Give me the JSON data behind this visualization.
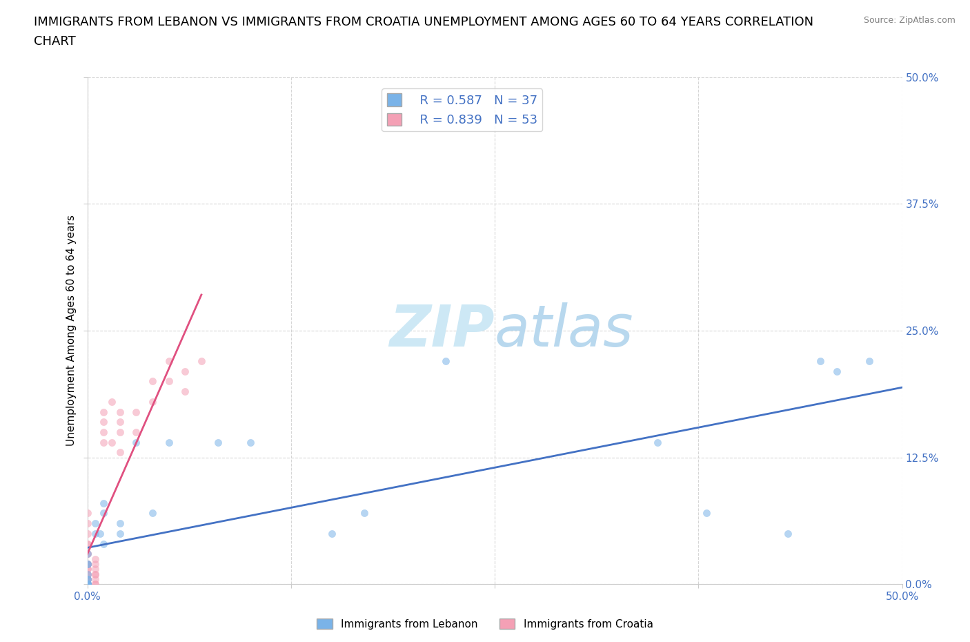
{
  "title_line1": "IMMIGRANTS FROM LEBANON VS IMMIGRANTS FROM CROATIA UNEMPLOYMENT AMONG AGES 60 TO 64 YEARS CORRELATION",
  "title_line2": "CHART",
  "source": "Source: ZipAtlas.com",
  "ylabel": "Unemployment Among Ages 60 to 64 years",
  "legend_R1": "R = 0.587",
  "legend_N1": "N = 37",
  "legend_R2": "R = 0.839",
  "legend_N2": "N = 53",
  "color_lebanon": "#7ab3e8",
  "color_croatia": "#f4a0b5",
  "line_color_lebanon": "#4472c4",
  "line_color_croatia": "#e05080",
  "watermark_zip": "ZIP",
  "watermark_atlas": "atlas",
  "xlim": [
    0.0,
    0.5
  ],
  "ylim": [
    0.0,
    0.5
  ],
  "xticks": [
    0.0,
    0.125,
    0.25,
    0.375,
    0.5
  ],
  "yticks": [
    0.0,
    0.125,
    0.25,
    0.375,
    0.5
  ],
  "xtick_labels": [
    "0.0%",
    "",
    "",
    "",
    "50.0%"
  ],
  "ytick_labels": [
    "0.0%",
    "12.5%",
    "25.0%",
    "37.5%",
    "50.0%"
  ],
  "lebanon_x": [
    0.0,
    0.0,
    0.0,
    0.0,
    0.0,
    0.0,
    0.0,
    0.0,
    0.0,
    0.0,
    0.0,
    0.0,
    0.0,
    0.0,
    0.0,
    0.005,
    0.005,
    0.008,
    0.01,
    0.01,
    0.01,
    0.02,
    0.02,
    0.03,
    0.04,
    0.05,
    0.08,
    0.1,
    0.15,
    0.17,
    0.22,
    0.35,
    0.38,
    0.43,
    0.45,
    0.46,
    0.48
  ],
  "lebanon_y": [
    0.0,
    0.0,
    0.0,
    0.0,
    0.0,
    0.0,
    0.0,
    0.0,
    0.0,
    0.005,
    0.005,
    0.01,
    0.02,
    0.02,
    0.03,
    0.05,
    0.06,
    0.05,
    0.04,
    0.07,
    0.08,
    0.05,
    0.06,
    0.14,
    0.07,
    0.14,
    0.14,
    0.14,
    0.05,
    0.07,
    0.22,
    0.14,
    0.07,
    0.05,
    0.22,
    0.21,
    0.22
  ],
  "croatia_x": [
    0.0,
    0.0,
    0.0,
    0.0,
    0.0,
    0.0,
    0.0,
    0.0,
    0.0,
    0.0,
    0.0,
    0.0,
    0.0,
    0.0,
    0.0,
    0.0,
    0.0,
    0.0,
    0.0,
    0.0,
    0.0,
    0.0,
    0.0,
    0.0,
    0.0,
    0.0,
    0.005,
    0.005,
    0.005,
    0.005,
    0.005,
    0.005,
    0.005,
    0.005,
    0.01,
    0.01,
    0.01,
    0.01,
    0.015,
    0.015,
    0.02,
    0.02,
    0.02,
    0.02,
    0.03,
    0.03,
    0.04,
    0.04,
    0.05,
    0.05,
    0.06,
    0.06,
    0.07
  ],
  "croatia_y": [
    0.0,
    0.0,
    0.0,
    0.0,
    0.0,
    0.0,
    0.0,
    0.0,
    0.005,
    0.005,
    0.005,
    0.01,
    0.01,
    0.015,
    0.015,
    0.02,
    0.02,
    0.02,
    0.02,
    0.03,
    0.03,
    0.04,
    0.04,
    0.05,
    0.06,
    0.07,
    0.0,
    0.0,
    0.005,
    0.01,
    0.01,
    0.015,
    0.02,
    0.025,
    0.14,
    0.15,
    0.16,
    0.17,
    0.14,
    0.18,
    0.13,
    0.15,
    0.16,
    0.17,
    0.15,
    0.17,
    0.18,
    0.2,
    0.2,
    0.22,
    0.19,
    0.21,
    0.22
  ],
  "background_color": "#ffffff",
  "grid_color": "#cccccc",
  "title_fontsize": 13,
  "axis_label_fontsize": 11,
  "tick_fontsize": 11,
  "legend_fontsize": 13,
  "watermark_fontsize": 60,
  "watermark_color": "#cde8f5",
  "scatter_alpha": 0.55,
  "scatter_size": 55
}
